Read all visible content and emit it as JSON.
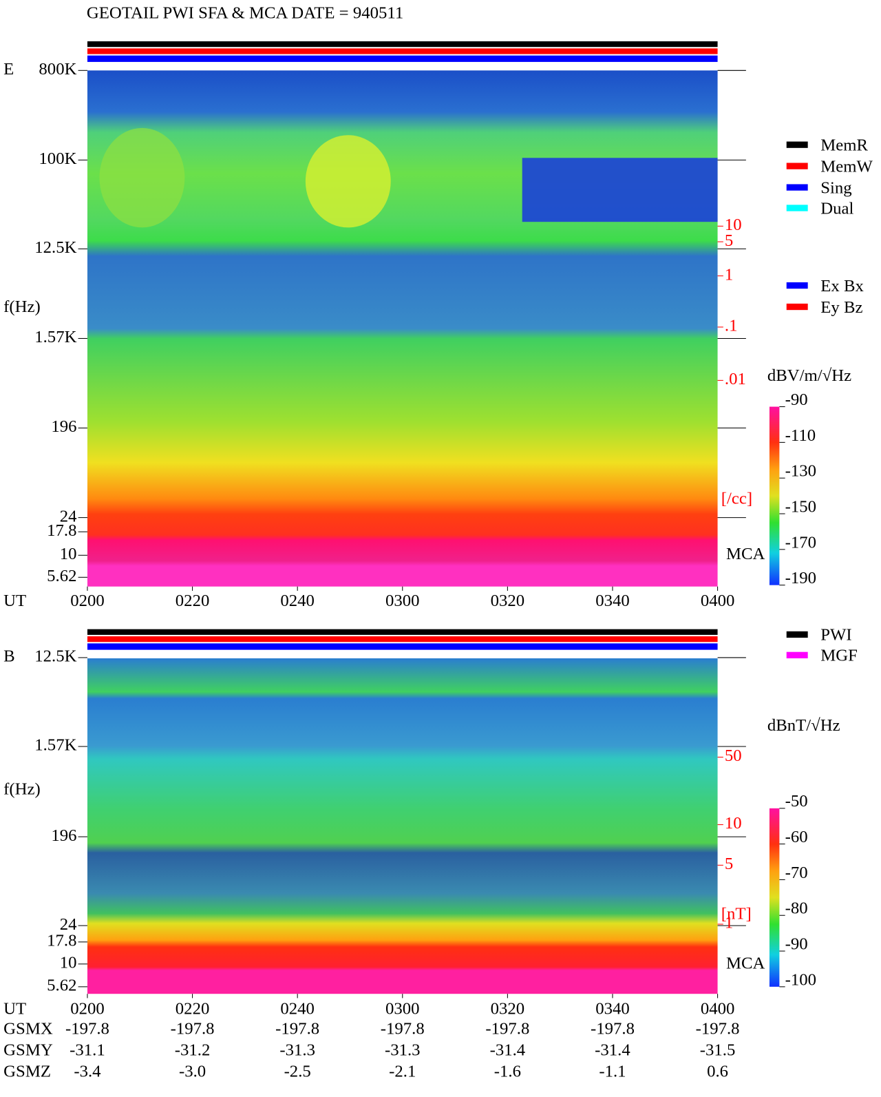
{
  "title": "GEOTAIL  PWI SFA & MCA   DATE = 940511",
  "time_label": "UT",
  "times": [
    "0200",
    "0220",
    "0240",
    "0300",
    "0320",
    "0340",
    "0400"
  ],
  "panels": [
    {
      "label": "E",
      "freq_ticks": [
        "800K",
        "100K",
        "12.5K",
        "1.57K",
        "196",
        "24",
        "17.8",
        "10",
        "5.62"
      ],
      "axis_label": "f(Hz)",
      "density_ticks": [
        "10",
        "5",
        "1",
        ".1",
        ".01"
      ],
      "density_unit": "[/cc]",
      "mca_label": "MCA",
      "unit": "dBV/m/√Hz",
      "colorbar_ticks": [
        "-90",
        "-110",
        "-130",
        "-150",
        "-170",
        "-190"
      ]
    },
    {
      "label": "B",
      "freq_ticks": [
        "12.5K",
        "1.57K",
        "196",
        "24",
        "17.8",
        "10",
        "5.62"
      ],
      "axis_label": "f(Hz)",
      "density_ticks": [
        "50",
        "10",
        "5",
        "1"
      ],
      "density_unit": "[nT]",
      "mca_label": "MCA",
      "unit": "dBnT/√Hz",
      "colorbar_ticks": [
        "-50",
        "-60",
        "-70",
        "-80",
        "-90",
        "-100"
      ]
    }
  ],
  "legend_mode": [
    {
      "name": "MemR",
      "color": "#000000"
    },
    {
      "name": "MemW",
      "color": "#ff0000"
    },
    {
      "name": "Sing",
      "color": "#0000ff"
    },
    {
      "name": "Dual",
      "color": "#00ffff"
    }
  ],
  "legend_channel": [
    {
      "name": "Ex Bx",
      "color": "#0000ff"
    },
    {
      "name": "Ey Bz",
      "color": "#ff0000"
    }
  ],
  "legend_source": [
    {
      "name": "PWI",
      "color": "#000000"
    },
    {
      "name": "MGF",
      "color": "#ff00ff"
    }
  ],
  "orbit": [
    {
      "label": "GSMX",
      "values": [
        "-197.8",
        "-197.8",
        "-197.8",
        "-197.8",
        "-197.8",
        "-197.8",
        "-197.8"
      ]
    },
    {
      "label": "GSMY",
      "values": [
        "-31.1",
        "-31.2",
        "-31.3",
        "-31.3",
        "-31.4",
        "-31.4",
        "-31.5"
      ]
    },
    {
      "label": "GSMZ",
      "values": [
        "-3.4",
        "-3.0",
        "-2.5",
        "-2.1",
        "-1.6",
        "-1.1",
        "0.6"
      ]
    }
  ]
}
